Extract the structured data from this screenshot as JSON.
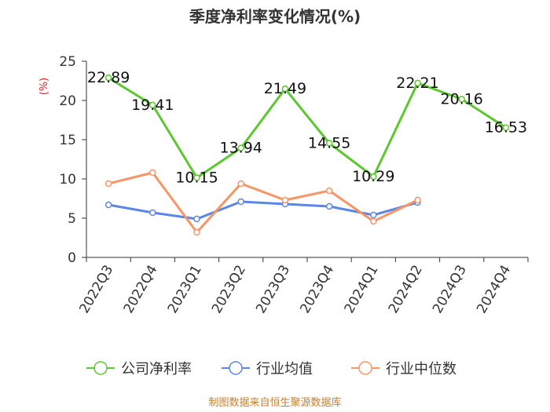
{
  "chart_data": {
    "type": "line",
    "title": "季度净利率变化情况(%)",
    "unit_label": "(%)",
    "categories": [
      "2022Q3",
      "2022Q4",
      "2023Q1",
      "2023Q2",
      "2023Q3",
      "2023Q4",
      "2024Q1",
      "2024Q2",
      "2024Q3",
      "2024Q4"
    ],
    "yticks": [
      "0",
      "5",
      "10",
      "15",
      "20",
      "25"
    ],
    "ylim": [
      0,
      25
    ],
    "grid": false,
    "legend_position": "bottom",
    "series": [
      {
        "name": "公司净利率",
        "color": "#5cc72e",
        "values": [
          22.89,
          19.41,
          10.15,
          13.94,
          21.49,
          14.55,
          10.29,
          22.21,
          20.16,
          16.53
        ],
        "labels": [
          "22.89",
          "19.41",
          "10.15",
          "13.94",
          "21.49",
          "14.55",
          "10.29",
          "22.21",
          "20.16",
          "16.53"
        ]
      },
      {
        "name": "行业均值",
        "color": "#5b86e5",
        "values": [
          6.7,
          5.7,
          4.9,
          7.1,
          6.8,
          6.5,
          5.4,
          7.0,
          null,
          null
        ]
      },
      {
        "name": "行业中位数",
        "color": "#f79566",
        "values": [
          9.4,
          10.8,
          3.2,
          9.4,
          7.3,
          8.5,
          4.6,
          7.3,
          null,
          null
        ]
      }
    ],
    "source": "制图数据来自恒生聚源数据库"
  }
}
